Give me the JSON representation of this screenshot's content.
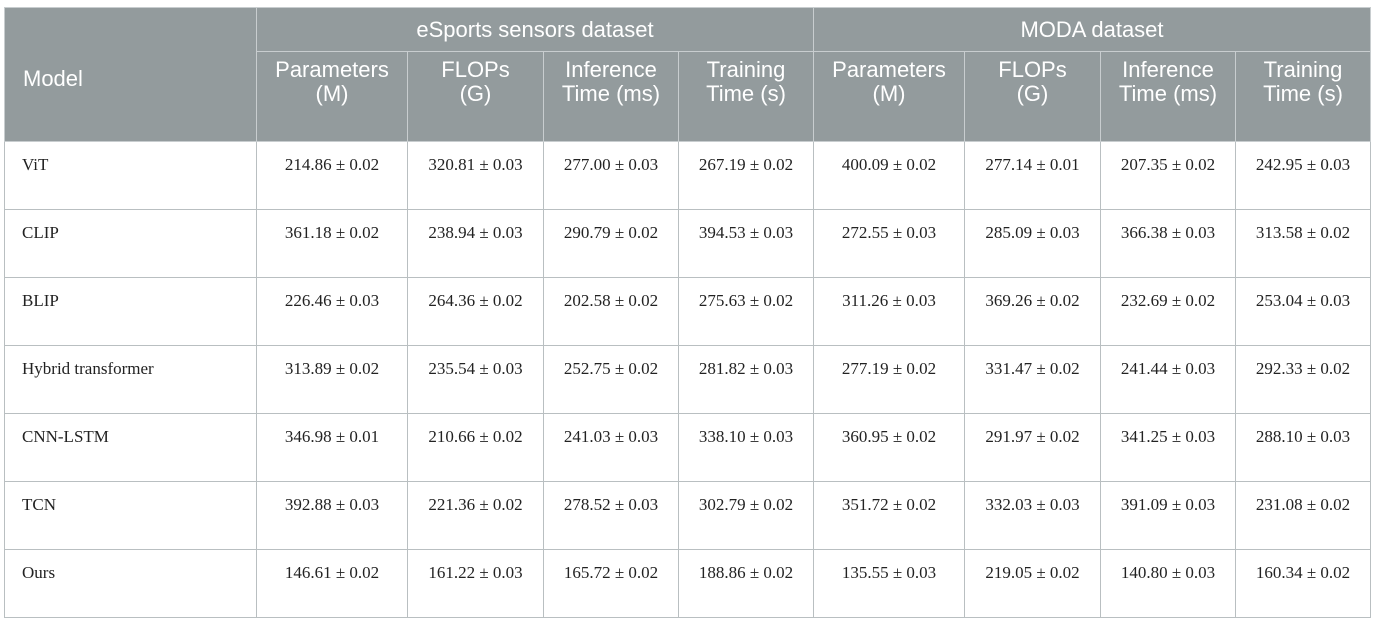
{
  "header": {
    "model": "Model",
    "group1": "eSports sensors dataset",
    "group2": "MODA dataset",
    "columns": [
      "Parameters (M)",
      "FLOPs (G)",
      "Inference Time (ms)",
      "Training Time (s)"
    ]
  },
  "rows": [
    {
      "model": "ViT",
      "values": [
        "214.86 ± 0.02",
        "320.81 ± 0.03",
        "277.00 ± 0.03",
        "267.19 ± 0.02",
        "400.09 ± 0.02",
        "277.14 ± 0.01",
        "207.35 ± 0.02",
        "242.95 ± 0.03"
      ]
    },
    {
      "model": "CLIP",
      "values": [
        "361.18 ± 0.02",
        "238.94 ± 0.03",
        "290.79 ± 0.02",
        "394.53 ± 0.03",
        "272.55 ± 0.03",
        "285.09 ± 0.03",
        "366.38 ± 0.03",
        "313.58 ± 0.02"
      ]
    },
    {
      "model": "BLIP",
      "values": [
        "226.46 ± 0.03",
        "264.36 ± 0.02",
        "202.58 ± 0.02",
        "275.63 ± 0.02",
        "311.26 ± 0.03",
        "369.26 ± 0.02",
        "232.69 ± 0.02",
        "253.04 ± 0.03"
      ]
    },
    {
      "model": "Hybrid transformer",
      "values": [
        "313.89 ± 0.02",
        "235.54 ± 0.03",
        "252.75 ± 0.02",
        "281.82 ± 0.03",
        "277.19 ± 0.02",
        "331.47 ± 0.02",
        "241.44 ± 0.03",
        "292.33 ± 0.02"
      ]
    },
    {
      "model": "CNN-LSTM",
      "values": [
        "346.98 ± 0.01",
        "210.66 ± 0.02",
        "241.03 ± 0.03",
        "338.10 ± 0.03",
        "360.95 ± 0.02",
        "291.97 ± 0.02",
        "341.25 ± 0.03",
        "288.10 ± 0.03"
      ]
    },
    {
      "model": "TCN",
      "values": [
        "392.88 ± 0.03",
        "221.36 ± 0.02",
        "278.52 ± 0.03",
        "302.79 ± 0.02",
        "351.72 ± 0.02",
        "332.03 ± 0.03",
        "391.09 ± 0.03",
        "231.08 ± 0.02"
      ]
    },
    {
      "model": "Ours",
      "values": [
        "146.61 ± 0.02",
        "161.22 ± 0.03",
        "165.72 ± 0.02",
        "188.86 ± 0.02",
        "135.55 ± 0.03",
        "219.05 ± 0.02",
        "140.80 ± 0.03",
        "160.34 ± 0.02"
      ]
    }
  ]
}
